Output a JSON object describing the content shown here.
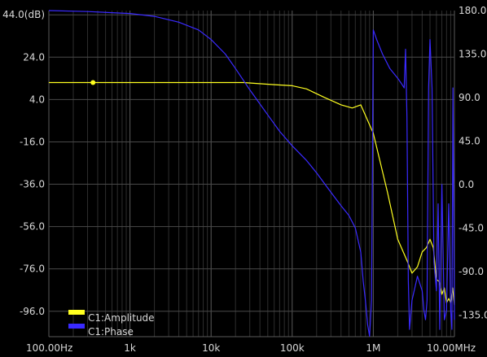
{
  "chart_data": {
    "type": "line",
    "x_scale": "log",
    "x_range_hz": [
      100,
      10000000
    ],
    "x_tick_values": [
      100,
      1000,
      10000,
      100000,
      1000000,
      10000000
    ],
    "x_tick_labels": [
      "100.00Hz",
      "1k",
      "10k",
      "100k",
      "1M",
      "10.00MHz"
    ],
    "y_left_range": [
      -108,
      46
    ],
    "y_left_tick_values": [
      44,
      24,
      4,
      -16,
      -36,
      -56,
      -76,
      -96
    ],
    "y_left_tick_labels": [
      "44.0(dB)",
      "24.0",
      "4.0",
      "-16.0",
      "-36.0",
      "-56.0",
      "-76.0",
      "-96.0"
    ],
    "y_right_range": [
      -157.5,
      180
    ],
    "y_right_tick_values": [
      180,
      135,
      90,
      45,
      0,
      -45,
      -90,
      -135
    ],
    "y_right_tick_labels": [
      "180.00",
      "135.0",
      "90.0",
      "45.0",
      "0.0",
      "-45.0",
      "-90.0",
      "-135.0"
    ],
    "grid": true,
    "legend_position": "bottom-left",
    "series": [
      {
        "name": "C1:Amplitude",
        "color": "#ffff20",
        "axis": "left",
        "marker_at_hz": 350,
        "x": [
          100,
          1000,
          10000,
          25000,
          60000,
          100000,
          150000,
          250000,
          400000,
          550000,
          700000,
          1000000,
          1500000,
          2000000,
          2600000,
          3000000,
          3500000,
          4000000,
          4500000,
          5000000,
          5500000,
          6000000,
          6500000,
          7000000,
          7500000,
          8000000,
          8500000,
          9000000,
          9500000,
          10000000
        ],
        "y": [
          12,
          12,
          12,
          12,
          11,
          10.5,
          9,
          5,
          1.5,
          0,
          1.5,
          -12,
          -40,
          -62,
          -72,
          -78,
          -75,
          -68,
          -66,
          -62,
          -66,
          -81,
          -82,
          -88,
          -85,
          -92,
          -90,
          -92,
          -85,
          -93
        ]
      },
      {
        "name": "C1:Phase",
        "color": "#3a2aff",
        "axis": "right",
        "x": [
          100,
          300,
          1000,
          2000,
          4000,
          7000,
          10000,
          15000,
          20000,
          30000,
          50000,
          70000,
          100000,
          150000,
          200000,
          300000,
          400000,
          500000,
          600000,
          700000,
          750000,
          800000,
          850000,
          900000,
          950000,
          1000000,
          1100000,
          1300000,
          1600000,
          2000000,
          2200000,
          2400000,
          2500000,
          2600000,
          2700000,
          2800000,
          3000000,
          3500000,
          4000000,
          4200000,
          4400000,
          4600000,
          4800000,
          5000000,
          5300000,
          5600000,
          6000000,
          6300000,
          6600000,
          7000000,
          7500000,
          8000000,
          8500000,
          9000000,
          9300000,
          9600000,
          10000000
        ],
        "y": [
          180,
          179,
          177,
          174,
          168,
          160,
          150,
          135,
          120,
          98,
          72,
          55,
          40,
          25,
          12,
          -8,
          -22,
          -32,
          -45,
          -70,
          -100,
          -120,
          -145,
          -157,
          -120,
          160,
          150,
          135,
          120,
          110,
          105,
          100,
          140,
          70,
          -100,
          -150,
          -120,
          -95,
          -110,
          -130,
          -140,
          -120,
          100,
          150,
          100,
          -80,
          -110,
          -20,
          -150,
          0,
          -140,
          -130,
          -20,
          -130,
          -150,
          100,
          -140
        ]
      }
    ]
  },
  "legend": {
    "amplitude_label": "C1:Amplitude",
    "phase_label": "C1:Phase"
  }
}
